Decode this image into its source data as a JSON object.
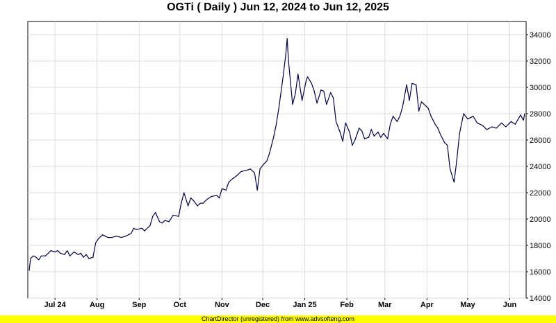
{
  "chart_data": {
    "type": "line",
    "title": "OGTi ( Daily ) Jun 12, 2024 to Jun 12, 2025",
    "xlabel": "",
    "ylabel": "",
    "ylim": [
      14000,
      35000
    ],
    "yticks": [
      14000,
      16000,
      18000,
      20000,
      22000,
      24000,
      26000,
      28000,
      30000,
      32000,
      34000
    ],
    "xticks": [
      {
        "label": "Jul 24",
        "date": "2024-07-01"
      },
      {
        "label": "Aug",
        "date": "2024-08-01"
      },
      {
        "label": "Sep",
        "date": "2024-09-01"
      },
      {
        "label": "Oct",
        "date": "2024-10-01"
      },
      {
        "label": "Nov",
        "date": "2024-11-01"
      },
      {
        "label": "Dec",
        "date": "2024-12-01"
      },
      {
        "label": "Jan 25",
        "date": "2025-01-01"
      },
      {
        "label": "Feb",
        "date": "2025-02-01"
      },
      {
        "label": "Mar",
        "date": "2025-03-01"
      },
      {
        "label": "Apr",
        "date": "2025-04-01"
      },
      {
        "label": "May",
        "date": "2025-05-01"
      },
      {
        "label": "Jun",
        "date": "2025-06-01"
      }
    ],
    "grid": true,
    "line_color": "#000040",
    "series": [
      {
        "points": [
          [
            "2024-06-12",
            16100
          ],
          [
            "2024-06-13",
            17000
          ],
          [
            "2024-06-15",
            17200
          ],
          [
            "2024-06-17",
            17100
          ],
          [
            "2024-06-19",
            16900
          ],
          [
            "2024-06-21",
            17200
          ],
          [
            "2024-06-24",
            17200
          ],
          [
            "2024-06-26",
            17400
          ],
          [
            "2024-06-28",
            17600
          ],
          [
            "2024-07-01",
            17500
          ],
          [
            "2024-07-03",
            17600
          ],
          [
            "2024-07-05",
            17400
          ],
          [
            "2024-07-08",
            17300
          ],
          [
            "2024-07-10",
            17600
          ],
          [
            "2024-07-12",
            17200
          ],
          [
            "2024-07-15",
            17500
          ],
          [
            "2024-07-18",
            17300
          ],
          [
            "2024-07-20",
            17400
          ],
          [
            "2024-07-22",
            17100
          ],
          [
            "2024-07-24",
            17300
          ],
          [
            "2024-07-26",
            17000
          ],
          [
            "2024-07-29",
            17100
          ],
          [
            "2024-07-31",
            18200
          ],
          [
            "2024-08-02",
            18500
          ],
          [
            "2024-08-05",
            18800
          ],
          [
            "2024-08-07",
            18700
          ],
          [
            "2024-08-09",
            18600
          ],
          [
            "2024-08-12",
            18600
          ],
          [
            "2024-08-15",
            18700
          ],
          [
            "2024-08-19",
            18600
          ],
          [
            "2024-08-22",
            18700
          ],
          [
            "2024-08-26",
            18900
          ],
          [
            "2024-08-28",
            19300
          ],
          [
            "2024-08-30",
            19200
          ],
          [
            "2024-09-03",
            19300
          ],
          [
            "2024-09-05",
            19100
          ],
          [
            "2024-09-09",
            19500
          ],
          [
            "2024-09-11",
            20200
          ],
          [
            "2024-09-13",
            20500
          ],
          [
            "2024-09-16",
            19800
          ],
          [
            "2024-09-18",
            19700
          ],
          [
            "2024-09-20",
            19900
          ],
          [
            "2024-09-23",
            19800
          ],
          [
            "2024-09-26",
            20300
          ],
          [
            "2024-09-30",
            20200
          ],
          [
            "2024-10-02",
            21200
          ],
          [
            "2024-10-04",
            22000
          ],
          [
            "2024-10-07",
            21000
          ],
          [
            "2024-10-09",
            21600
          ],
          [
            "2024-10-11",
            21400
          ],
          [
            "2024-10-14",
            21000
          ],
          [
            "2024-10-16",
            21200
          ],
          [
            "2024-10-18",
            21200
          ],
          [
            "2024-10-21",
            21500
          ],
          [
            "2024-10-24",
            21700
          ],
          [
            "2024-10-28",
            21800
          ],
          [
            "2024-10-30",
            21600
          ],
          [
            "2024-11-01",
            22300
          ],
          [
            "2024-11-04",
            22200
          ],
          [
            "2024-11-06",
            22800
          ],
          [
            "2024-11-08",
            23000
          ],
          [
            "2024-11-12",
            23300
          ],
          [
            "2024-11-15",
            23600
          ],
          [
            "2024-11-19",
            23700
          ],
          [
            "2024-11-22",
            23800
          ],
          [
            "2024-11-25",
            23500
          ],
          [
            "2024-11-27",
            22200
          ],
          [
            "2024-11-29",
            23800
          ],
          [
            "2024-12-02",
            24200
          ],
          [
            "2024-12-04",
            24400
          ],
          [
            "2024-12-06",
            25000
          ],
          [
            "2024-12-09",
            26200
          ],
          [
            "2024-12-11",
            27200
          ],
          [
            "2024-12-13",
            28500
          ],
          [
            "2024-12-16",
            30800
          ],
          [
            "2024-12-18",
            32500
          ],
          [
            "2024-12-19",
            33700
          ],
          [
            "2024-12-20",
            32000
          ],
          [
            "2024-12-23",
            28700
          ],
          [
            "2024-12-25",
            29500
          ],
          [
            "2024-12-27",
            31000
          ],
          [
            "2024-12-30",
            29000
          ],
          [
            "2025-01-02",
            30500
          ],
          [
            "2025-01-03",
            30800
          ],
          [
            "2025-01-06",
            30300
          ],
          [
            "2025-01-08",
            29700
          ],
          [
            "2025-01-10",
            28800
          ],
          [
            "2025-01-13",
            29800
          ],
          [
            "2025-01-15",
            29700
          ],
          [
            "2025-01-17",
            28700
          ],
          [
            "2025-01-20",
            29600
          ],
          [
            "2025-01-22",
            29200
          ],
          [
            "2025-01-24",
            27400
          ],
          [
            "2025-01-27",
            26600
          ],
          [
            "2025-01-29",
            25900
          ],
          [
            "2025-01-31",
            27300
          ],
          [
            "2025-02-03",
            26600
          ],
          [
            "2025-02-05",
            25600
          ],
          [
            "2025-02-07",
            26000
          ],
          [
            "2025-02-10",
            26900
          ],
          [
            "2025-02-12",
            26700
          ],
          [
            "2025-02-14",
            26100
          ],
          [
            "2025-02-17",
            26200
          ],
          [
            "2025-02-19",
            26800
          ],
          [
            "2025-02-21",
            26300
          ],
          [
            "2025-02-24",
            26600
          ],
          [
            "2025-02-26",
            26200
          ],
          [
            "2025-02-28",
            26500
          ],
          [
            "2025-03-03",
            26100
          ],
          [
            "2025-03-05",
            27200
          ],
          [
            "2025-03-07",
            27800
          ],
          [
            "2025-03-10",
            27400
          ],
          [
            "2025-03-12",
            27800
          ],
          [
            "2025-03-14",
            28500
          ],
          [
            "2025-03-17",
            30200
          ],
          [
            "2025-03-19",
            29000
          ],
          [
            "2025-03-21",
            30300
          ],
          [
            "2025-03-24",
            30200
          ],
          [
            "2025-03-26",
            28200
          ],
          [
            "2025-03-28",
            28900
          ],
          [
            "2025-03-31",
            28600
          ],
          [
            "2025-04-02",
            28400
          ],
          [
            "2025-04-04",
            27800
          ],
          [
            "2025-04-07",
            27200
          ],
          [
            "2025-04-09",
            26900
          ],
          [
            "2025-04-11",
            26400
          ],
          [
            "2025-04-14",
            25800
          ],
          [
            "2025-04-16",
            25600
          ],
          [
            "2025-04-18",
            23800
          ],
          [
            "2025-04-21",
            22800
          ],
          [
            "2025-04-23",
            24500
          ],
          [
            "2025-04-25",
            26500
          ],
          [
            "2025-04-28",
            28000
          ],
          [
            "2025-05-01",
            27600
          ],
          [
            "2025-05-05",
            27800
          ],
          [
            "2025-05-08",
            27300
          ],
          [
            "2025-05-12",
            27100
          ],
          [
            "2025-05-15",
            26800
          ],
          [
            "2025-05-19",
            27000
          ],
          [
            "2025-05-22",
            26900
          ],
          [
            "2025-05-26",
            27300
          ],
          [
            "2025-05-29",
            27000
          ],
          [
            "2025-06-02",
            27400
          ],
          [
            "2025-06-05",
            27200
          ],
          [
            "2025-06-09",
            27900
          ],
          [
            "2025-06-11",
            27500
          ],
          [
            "2025-06-12",
            28000
          ]
        ]
      }
    ]
  },
  "footer": {
    "text": "ChartDirector (unregistered) from www.advsofteng.com",
    "background": "#ffff00"
  }
}
